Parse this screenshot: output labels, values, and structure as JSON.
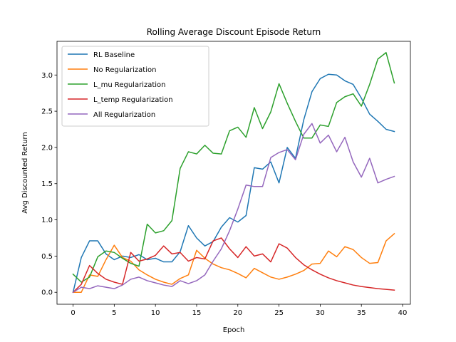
{
  "chart_data": {
    "type": "line",
    "title": "Rolling Average Discount Episode Return",
    "xlabel": "Epoch",
    "ylabel": "Avg Discounted Return",
    "xlim": [
      -1.95,
      40.95
    ],
    "ylim": [
      -0.165,
      3.465
    ],
    "xticks": [
      0,
      5,
      10,
      15,
      20,
      25,
      30,
      35,
      40
    ],
    "yticks": [
      0.0,
      0.5,
      1.0,
      1.5,
      2.0,
      2.5,
      3.0
    ],
    "xtick_labels": [
      "0",
      "5",
      "10",
      "15",
      "20",
      "25",
      "30",
      "35",
      "40"
    ],
    "ytick_labels": [
      "0.0",
      "0.5",
      "1.0",
      "1.5",
      "2.0",
      "2.5",
      "3.0"
    ],
    "legend_position": "upper-left",
    "grid": false,
    "x": [
      0,
      1,
      2,
      3,
      4,
      5,
      6,
      7,
      8,
      9,
      10,
      11,
      12,
      13,
      14,
      15,
      16,
      17,
      18,
      19,
      20,
      21,
      22,
      23,
      24,
      25,
      26,
      27,
      28,
      29,
      30,
      31,
      32,
      33,
      34,
      35,
      36,
      37,
      38,
      39
    ],
    "series": [
      {
        "name": "RL Baseline",
        "color": "#1f77b4",
        "values": [
          0.0,
          0.48,
          0.71,
          0.71,
          0.53,
          0.45,
          0.5,
          0.48,
          0.52,
          0.45,
          0.47,
          0.42,
          0.42,
          0.56,
          0.92,
          0.75,
          0.64,
          0.7,
          0.9,
          1.03,
          0.97,
          1.06,
          1.72,
          1.7,
          1.8,
          1.51,
          2.0,
          1.85,
          2.38,
          2.77,
          2.95,
          3.01,
          3.0,
          2.92,
          2.87,
          2.68,
          2.46,
          2.36,
          2.25,
          2.22
        ]
      },
      {
        "name": "No Regularization",
        "color": "#ff7f0e",
        "values": [
          0.0,
          0.0,
          0.24,
          0.22,
          0.45,
          0.65,
          0.48,
          0.43,
          0.31,
          0.24,
          0.18,
          0.14,
          0.11,
          0.19,
          0.24,
          0.58,
          0.47,
          0.39,
          0.34,
          0.31,
          0.26,
          0.2,
          0.33,
          0.27,
          0.21,
          0.18,
          0.21,
          0.25,
          0.3,
          0.39,
          0.4,
          0.57,
          0.49,
          0.63,
          0.59,
          0.48,
          0.4,
          0.41,
          0.71,
          0.81
        ]
      },
      {
        "name": "L_mu Regularization",
        "color": "#2ca02c",
        "values": [
          0.25,
          0.14,
          0.21,
          0.49,
          0.57,
          0.55,
          0.47,
          0.4,
          0.36,
          0.94,
          0.82,
          0.85,
          0.99,
          1.71,
          1.94,
          1.91,
          2.03,
          1.92,
          1.91,
          2.23,
          2.28,
          2.14,
          2.55,
          2.26,
          2.49,
          2.88,
          2.61,
          2.36,
          2.13,
          2.13,
          2.31,
          2.29,
          2.62,
          2.7,
          2.74,
          2.57,
          2.87,
          3.22,
          3.31,
          2.89
        ]
      },
      {
        "name": "L_temp Regularization",
        "color": "#d62728",
        "values": [
          0.0,
          0.11,
          0.37,
          0.26,
          0.18,
          0.14,
          0.11,
          0.55,
          0.43,
          0.46,
          0.51,
          0.64,
          0.53,
          0.55,
          0.43,
          0.48,
          0.46,
          0.71,
          0.75,
          0.6,
          0.48,
          0.63,
          0.5,
          0.53,
          0.42,
          0.67,
          0.61,
          0.48,
          0.38,
          0.31,
          0.25,
          0.2,
          0.16,
          0.13,
          0.1,
          0.08,
          0.065,
          0.05,
          0.04,
          0.03
        ]
      },
      {
        "name": "All Regularization",
        "color": "#9467bd",
        "values": [
          0.0,
          0.07,
          0.05,
          0.09,
          0.07,
          0.05,
          0.1,
          0.18,
          0.21,
          0.16,
          0.13,
          0.1,
          0.08,
          0.16,
          0.12,
          0.16,
          0.24,
          0.43,
          0.6,
          0.85,
          1.15,
          1.48,
          1.46,
          1.46,
          1.86,
          1.93,
          1.97,
          1.83,
          2.18,
          2.33,
          2.06,
          2.17,
          1.94,
          2.14,
          1.8,
          1.59,
          1.85,
          1.51,
          1.56,
          1.6
        ]
      }
    ]
  }
}
